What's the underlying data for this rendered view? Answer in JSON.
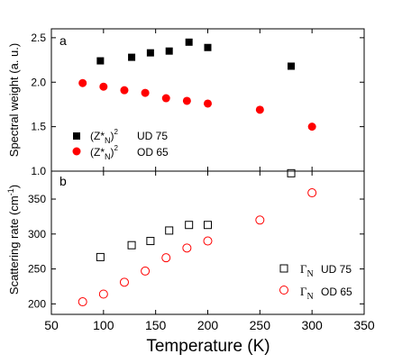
{
  "chart_data": [
    {
      "type": "scatter",
      "panel_label": "a",
      "ylabel": "Spectral weight (a. u.)",
      "ylim": [
        1.0,
        2.6
      ],
      "yticks": [
        "1.0",
        "1.5",
        "2.0",
        "2.5"
      ],
      "xlim": [
        50,
        350
      ],
      "legend_placement": "bottom-left",
      "series": [
        {
          "legend_prefix": "(Z*",
          "legend_subscript": "N",
          "legend_close": ")",
          "legend_superscript": "2",
          "legend_sample": "UD 75",
          "marker": "filled-square",
          "color": "#000000",
          "x": [
            97,
            127,
            145,
            163,
            182,
            200,
            280
          ],
          "y": [
            2.24,
            2.28,
            2.33,
            2.35,
            2.45,
            2.39,
            2.18
          ]
        },
        {
          "legend_prefix": "(Z*",
          "legend_subscript": "N",
          "legend_close": ")",
          "legend_superscript": "2",
          "legend_sample": "OD 65",
          "marker": "filled-circle",
          "color": "#ff0000",
          "x": [
            80,
            100,
            120,
            140,
            160,
            180,
            200,
            250,
            300
          ],
          "y": [
            1.99,
            1.95,
            1.91,
            1.88,
            1.82,
            1.79,
            1.76,
            1.69,
            1.5
          ]
        }
      ]
    },
    {
      "type": "scatter",
      "panel_label": "b",
      "ylabel": "Scattering rate (cm",
      "ylabel_superscript": "-1",
      "ylabel_close": ")",
      "ylim": [
        185,
        390
      ],
      "yticks": [
        "200",
        "250",
        "300",
        "350"
      ],
      "xlim": [
        50,
        350
      ],
      "xticks": [
        "50",
        "100",
        "150",
        "200",
        "250",
        "300",
        "350"
      ],
      "xlabel": "Temperature (K)",
      "legend_placement": "bottom-right",
      "series": [
        {
          "legend_symbol": "Γ",
          "legend_subscript": "N",
          "legend_sample": "UD 75",
          "marker": "open-square",
          "color": "#000000",
          "x": [
            97,
            127,
            145,
            163,
            182,
            200,
            280
          ],
          "y": [
            267,
            284,
            290,
            305,
            313,
            313,
            387
          ]
        },
        {
          "legend_symbol": "Γ",
          "legend_subscript": "N",
          "legend_sample": "OD 65",
          "marker": "open-circle",
          "color": "#ff0000",
          "x": [
            80,
            100,
            120,
            140,
            160,
            180,
            200,
            250,
            300
          ],
          "y": [
            203,
            214,
            231,
            247,
            266,
            280,
            290,
            320,
            359
          ]
        }
      ]
    }
  ]
}
